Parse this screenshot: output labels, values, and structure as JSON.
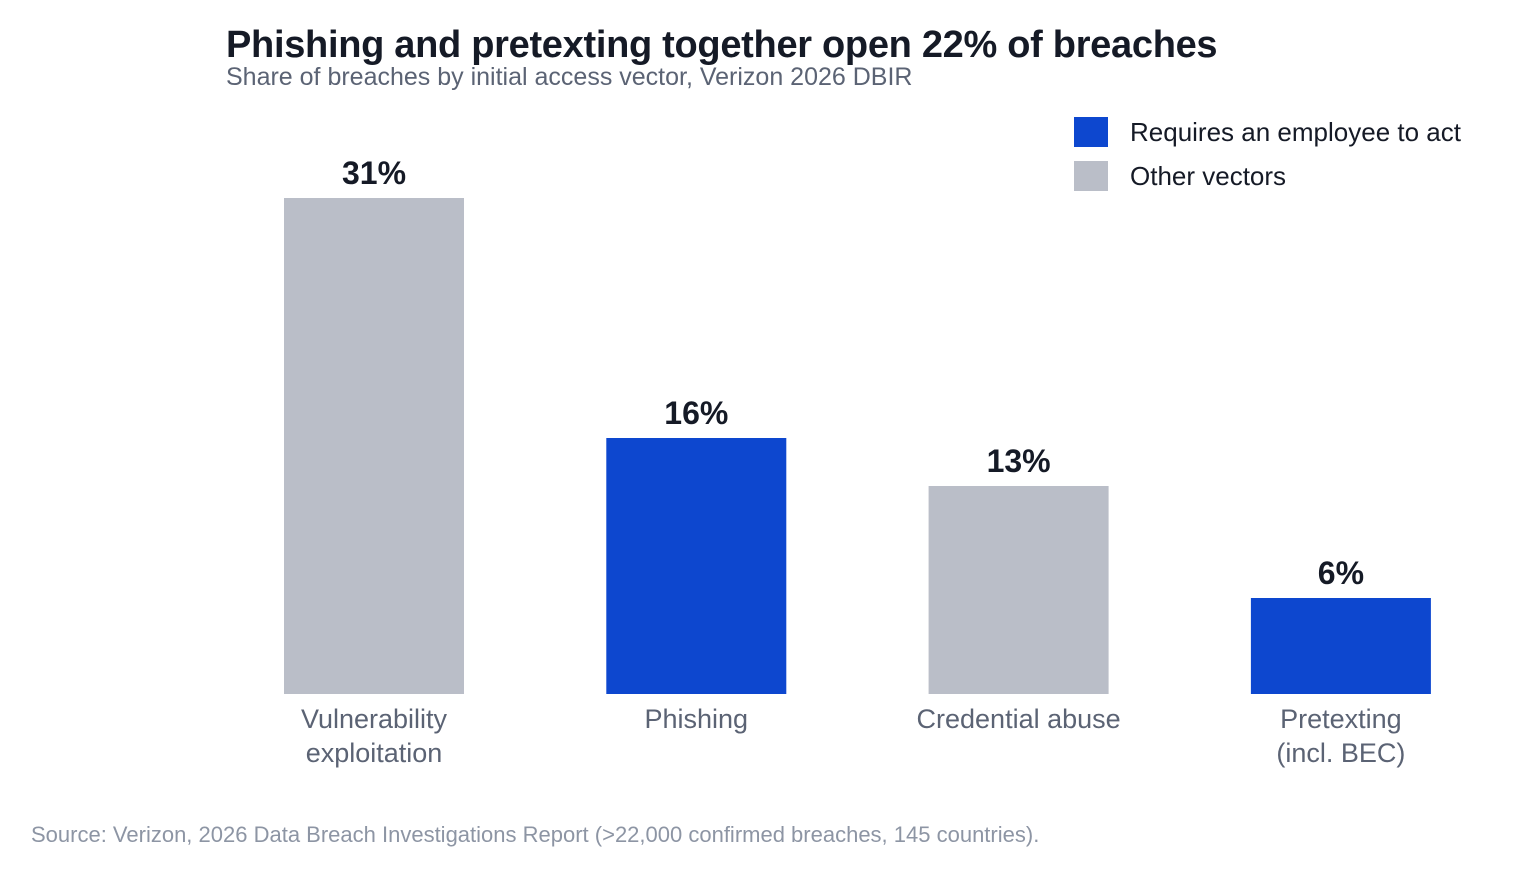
{
  "chart_data": {
    "type": "bar",
    "title": "Phishing and pretexting together open 22% of breaches",
    "subtitle": "Share of breaches by initial access vector, Verizon 2026 DBIR",
    "categories": [
      [
        "Vulnerability",
        "exploitation"
      ],
      [
        "Phishing"
      ],
      [
        "Credential abuse"
      ],
      [
        "Pretexting",
        "(incl. BEC)"
      ]
    ],
    "values": [
      31,
      16,
      13,
      6
    ],
    "data_labels": [
      "31%",
      "16%",
      "13%",
      "6%"
    ],
    "groups": [
      "other",
      "employee",
      "other",
      "employee"
    ],
    "ylim": [
      0,
      31
    ],
    "xlabel": "",
    "ylabel": "",
    "grid": false,
    "legend_position": "top-right",
    "legend": [
      {
        "key": "employee",
        "label": "Requires an employee to act"
      },
      {
        "key": "other",
        "label": "Other vectors"
      }
    ],
    "colors": {
      "employee": "#0d47cf",
      "other": "#babec8",
      "value_label": "#151a26",
      "category_label": "#5b6374"
    }
  },
  "source": "Source: Verizon, 2026 Data Breach Investigations Report (>22,000 confirmed breaches, 145 countries)."
}
